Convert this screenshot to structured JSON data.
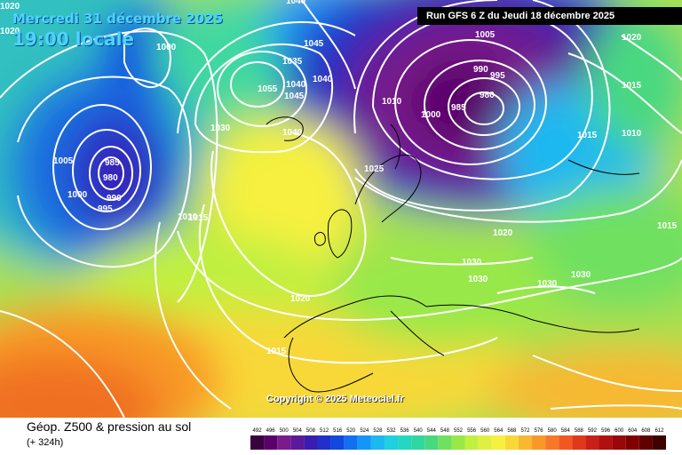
{
  "header": {
    "date": "Mercredi 31 décembre 2025",
    "hour": "19:00 locale",
    "run": "Run GFS 6 Z du Jeudi 18 décembre 2025"
  },
  "copyright": "Copyright © 2025 Meteociel.fr",
  "footer": {
    "title": "Géop. Z500 & pression au sol",
    "subtitle": "(+ 324h)"
  },
  "scale": {
    "values": [
      "492",
      "496",
      "500",
      "504",
      "508",
      "512",
      "516",
      "520",
      "524",
      "528",
      "532",
      "536",
      "540",
      "544",
      "548",
      "552",
      "556",
      "560",
      "564",
      "568",
      "572",
      "576",
      "580",
      "584",
      "588",
      "592",
      "596",
      "600",
      "604",
      "608",
      "612"
    ],
    "colors": [
      "#3a0040",
      "#5a006a",
      "#7a1a8c",
      "#5a1a9a",
      "#3c1cb0",
      "#2030c8",
      "#1048e0",
      "#1070f0",
      "#1496f8",
      "#1cb8f0",
      "#20d0e0",
      "#24d8c0",
      "#30d8a0",
      "#48d880",
      "#70e060",
      "#98e848",
      "#c0f040",
      "#e0f040",
      "#f8f040",
      "#f8d838",
      "#f8b830",
      "#f89828",
      "#f87828",
      "#f05820",
      "#e03818",
      "#c82018",
      "#b01010",
      "#980808",
      "#800000",
      "#600000",
      "#400000"
    ]
  },
  "isobar_labels": [
    {
      "text": "1040"
    },
    {
      "text": "1045"
    },
    {
      "text": "1035"
    },
    {
      "text": "1055"
    },
    {
      "text": "1040"
    },
    {
      "text": "1045"
    },
    {
      "text": "1040"
    },
    {
      "text": "1040"
    },
    {
      "text": "1030"
    },
    {
      "text": "1000"
    },
    {
      "text": "1005"
    },
    {
      "text": "985"
    },
    {
      "text": "980"
    },
    {
      "text": "990"
    },
    {
      "text": "1000"
    },
    {
      "text": "995"
    },
    {
      "text": "1010"
    },
    {
      "text": "1015"
    },
    {
      "text": "1020"
    },
    {
      "text": "1015"
    },
    {
      "text": "1010"
    },
    {
      "text": "1025"
    },
    {
      "text": "1005"
    },
    {
      "text": "990"
    },
    {
      "text": "995"
    },
    {
      "text": "980"
    },
    {
      "text": "985"
    },
    {
      "text": "1000"
    },
    {
      "text": "1010"
    },
    {
      "text": "1020"
    },
    {
      "text": "1030"
    },
    {
      "text": "1030"
    },
    {
      "text": "1030"
    },
    {
      "text": "1030"
    },
    {
      "text": "1015"
    },
    {
      "text": "1020"
    },
    {
      "text": "1015"
    },
    {
      "text": "1015"
    }
  ],
  "colors": {
    "title_cyan": "#4fd2ff",
    "low_core": "#3a0040",
    "isobar": "#ffffff",
    "coast": "#000000"
  }
}
